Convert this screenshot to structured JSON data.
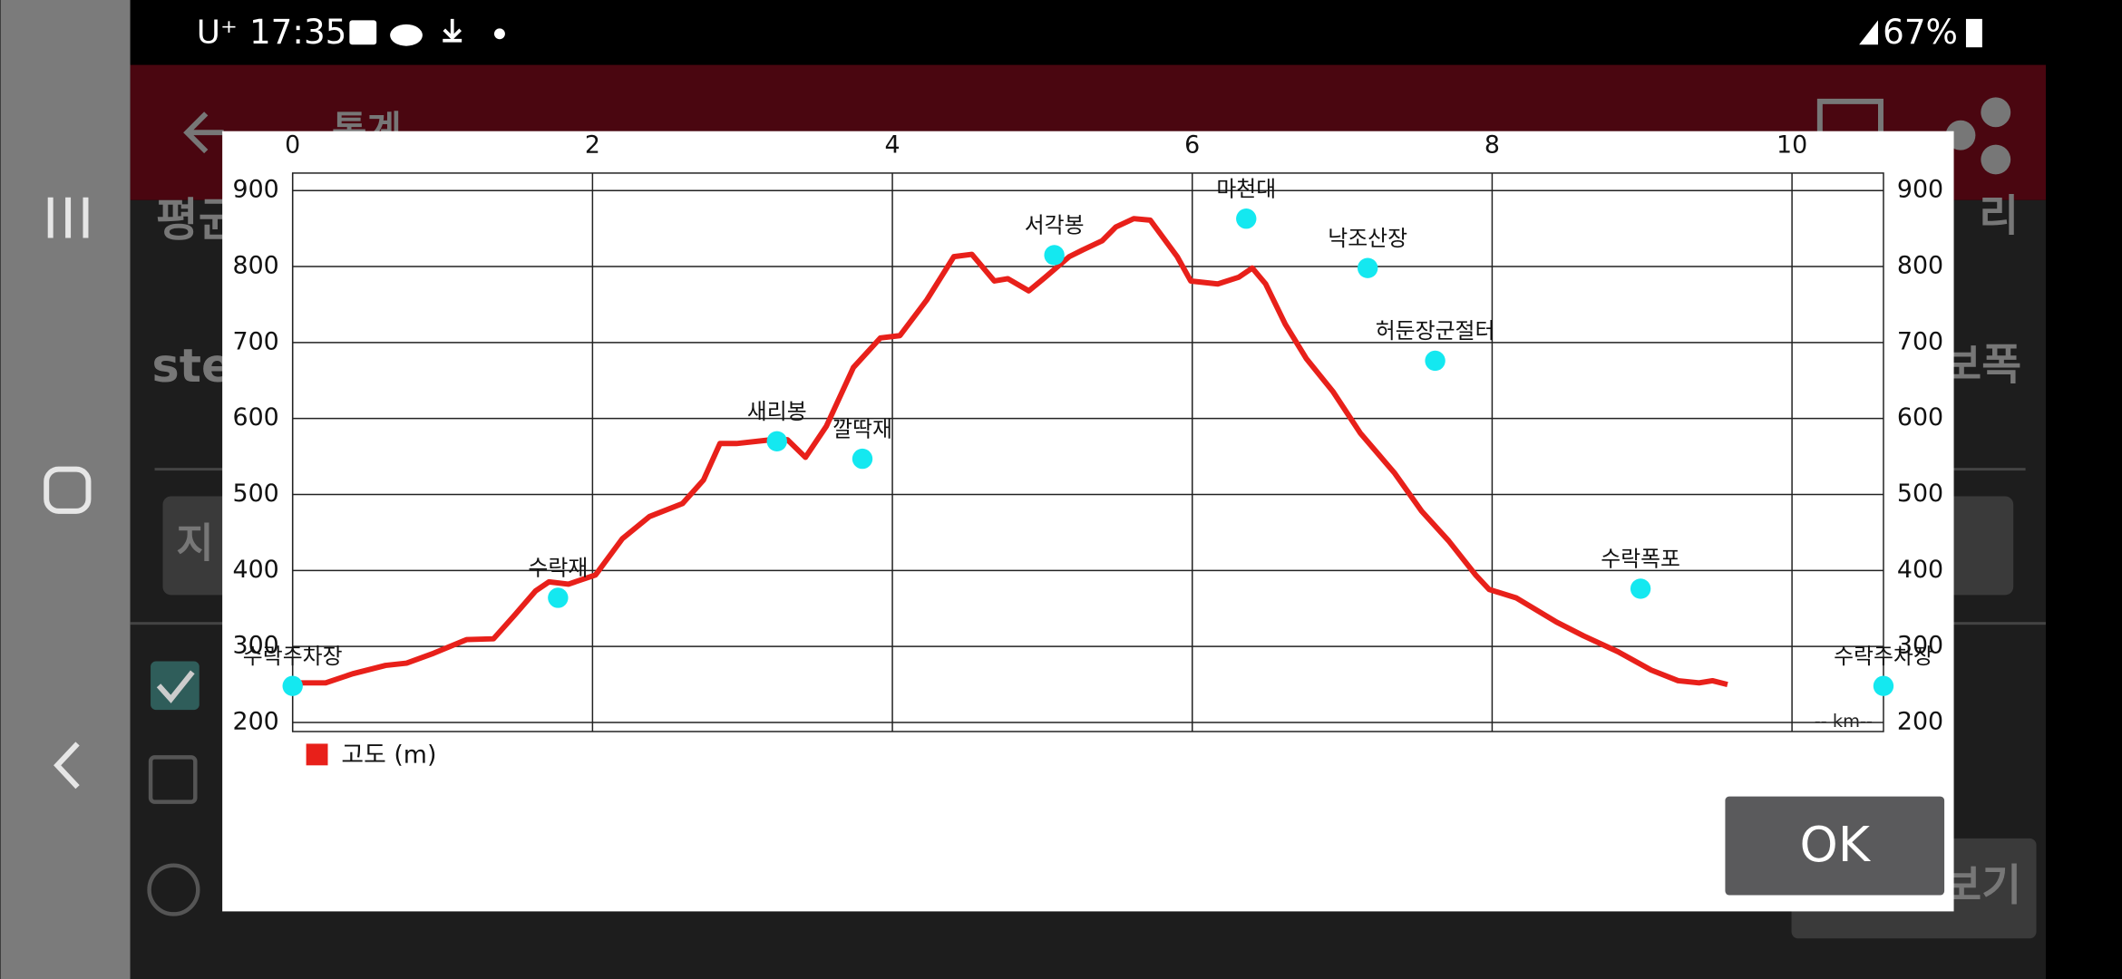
{
  "status_bar": {
    "carrier": "U⁺",
    "time": "17:35",
    "battery": "67%"
  },
  "app_bar": {
    "title": "통계"
  },
  "background": {
    "left": [
      "평균",
      "ste",
      "지"
    ],
    "right": [
      "리",
      "보폭",
      "보기"
    ]
  },
  "dialog": {
    "ok": "OK"
  },
  "chart_data": {
    "type": "line",
    "xlim": [
      0,
      10.61
    ],
    "xticks": [
      0,
      2,
      4,
      6,
      8,
      10
    ],
    "ylim": [
      188,
      923
    ],
    "yticks": [
      200,
      300,
      400,
      500,
      600,
      700,
      800,
      900
    ],
    "grid": true,
    "xlabel": "-- km--",
    "legend": "bottom-left",
    "series": [
      {
        "name": "고도 (m)",
        "color": "#e8201a",
        "x": [
          0,
          0.22,
          0.4,
          0.62,
          0.76,
          0.94,
          1.16,
          1.34,
          1.48,
          1.62,
          1.71,
          1.84,
          2.02,
          2.2,
          2.38,
          2.6,
          2.74,
          2.85,
          2.96,
          3.19,
          3.3,
          3.42,
          3.56,
          3.74,
          3.92,
          4.05,
          4.23,
          4.41,
          4.53,
          4.68,
          4.77,
          4.91,
          5.02,
          5.18,
          5.27,
          5.4,
          5.49,
          5.61,
          5.72,
          5.9,
          5.99,
          6.17,
          6.31,
          6.4,
          6.49,
          6.62,
          6.76,
          6.94,
          7.12,
          7.35,
          7.53,
          7.71,
          7.89,
          7.98,
          8.16,
          8.43,
          8.61,
          8.84,
          9.06,
          9.24,
          9.38,
          9.47,
          9.57
        ],
        "values": [
          252,
          252,
          264,
          275,
          278,
          291,
          309,
          310,
          341,
          373,
          385,
          382,
          394,
          442,
          471,
          488,
          519,
          567,
          567,
          572,
          572,
          549,
          590,
          667,
          706,
          709,
          756,
          813,
          816,
          781,
          784,
          768,
          786,
          813,
          822,
          834,
          852,
          863,
          861,
          813,
          781,
          777,
          786,
          798,
          777,
          724,
          679,
          635,
          581,
          528,
          478,
          439,
          394,
          375,
          364,
          332,
          314,
          293,
          269,
          255,
          252,
          255,
          250
        ]
      }
    ],
    "points": {
      "color": "#14e8f0",
      "labels": [
        "수락주차장",
        "수락재",
        "새리봉",
        "깔딱재",
        "서각봉",
        "마천대",
        "낙조산장",
        "허둔장군절터",
        "수락폭포",
        "수락주차장"
      ],
      "x": [
        0,
        1.77,
        3.23,
        3.8,
        5.08,
        6.36,
        7.17,
        7.62,
        8.99,
        10.61
      ],
      "values": [
        248,
        364,
        570,
        547,
        815,
        863,
        798,
        676,
        376,
        248
      ]
    }
  }
}
